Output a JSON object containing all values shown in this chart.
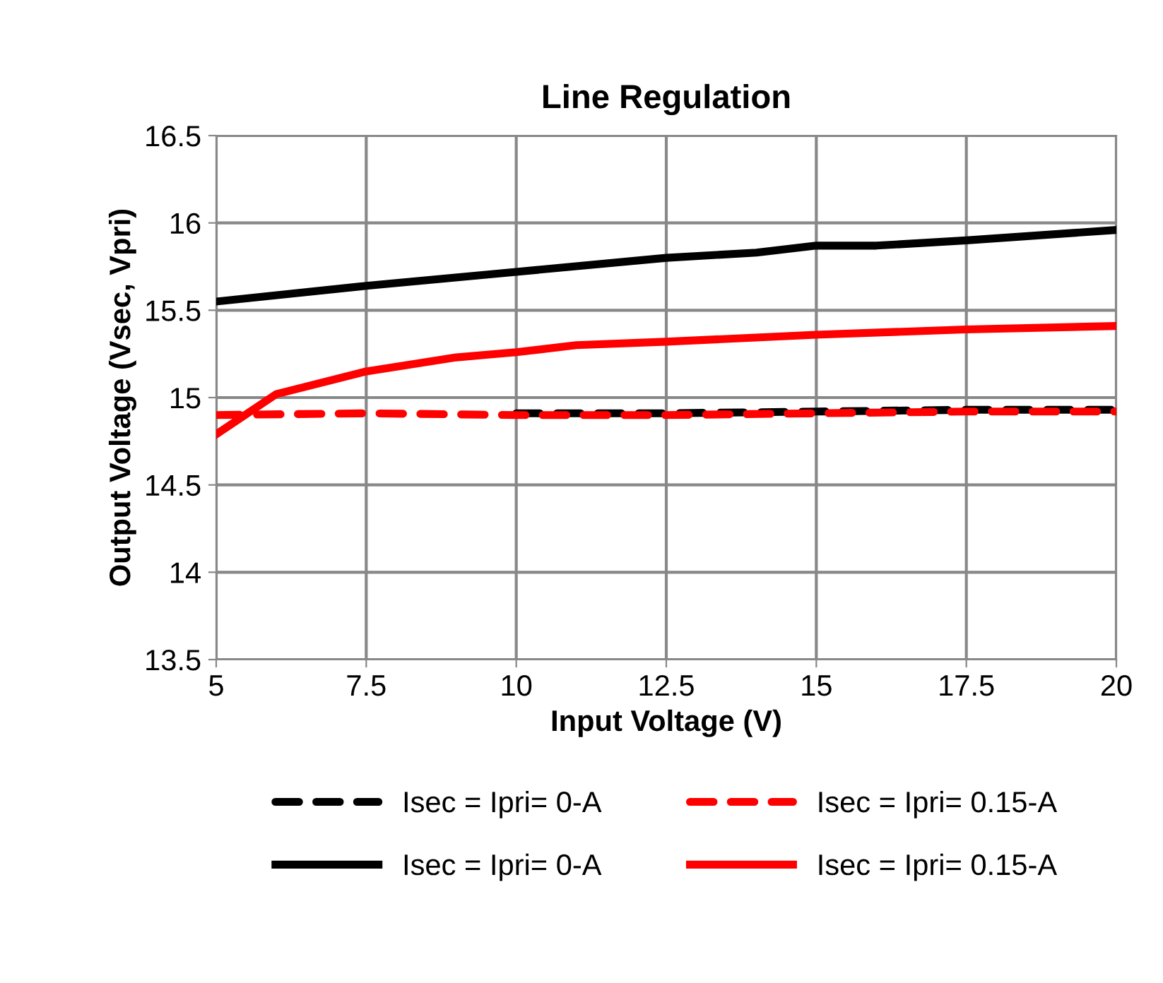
{
  "chart_data": {
    "type": "line",
    "title": "Line Regulation",
    "xlabel": "Input Voltage (V)",
    "ylabel": "Output Voltage (Vsec, Vpri)",
    "xlim": [
      5,
      20
    ],
    "xticks": [
      5,
      7.5,
      10,
      12.5,
      15,
      17.5,
      20
    ],
    "ylim": [
      13.5,
      16.5
    ],
    "yticks": [
      13.5,
      14,
      14.5,
      15,
      15.5,
      16,
      16.5
    ],
    "grid": true,
    "legend": "bottom",
    "series": [
      {
        "name": "Isec = Ipri= 0-A",
        "color": "#000000",
        "line_style": "dashed",
        "x": [
          10,
          12.5,
          15,
          17.5,
          20
        ],
        "values": [
          14.91,
          14.91,
          14.92,
          14.93,
          14.93
        ]
      },
      {
        "name": "Isec = Ipri= 0.15-A",
        "color": "#ff0000",
        "line_style": "dashed",
        "x": [
          5,
          7.5,
          10,
          12.5,
          15,
          17.5,
          20
        ],
        "values": [
          14.9,
          14.91,
          14.9,
          14.9,
          14.91,
          14.92,
          14.92
        ]
      },
      {
        "name": "Isec = Ipri= 0-A",
        "color": "#000000",
        "line_style": "solid",
        "x": [
          5,
          7.5,
          10,
          12.5,
          14,
          15,
          16,
          17.5,
          20
        ],
        "values": [
          15.55,
          15.64,
          15.72,
          15.8,
          15.83,
          15.87,
          15.87,
          15.9,
          15.96
        ]
      },
      {
        "name": "Isec = Ipri= 0.15-A",
        "color": "#ff0000",
        "line_style": "solid",
        "x": [
          5,
          6,
          7.5,
          9,
          10,
          11,
          12.5,
          15,
          17.5,
          20
        ],
        "values": [
          14.79,
          15.02,
          15.15,
          15.23,
          15.26,
          15.3,
          15.32,
          15.36,
          15.39,
          15.41
        ]
      }
    ]
  }
}
